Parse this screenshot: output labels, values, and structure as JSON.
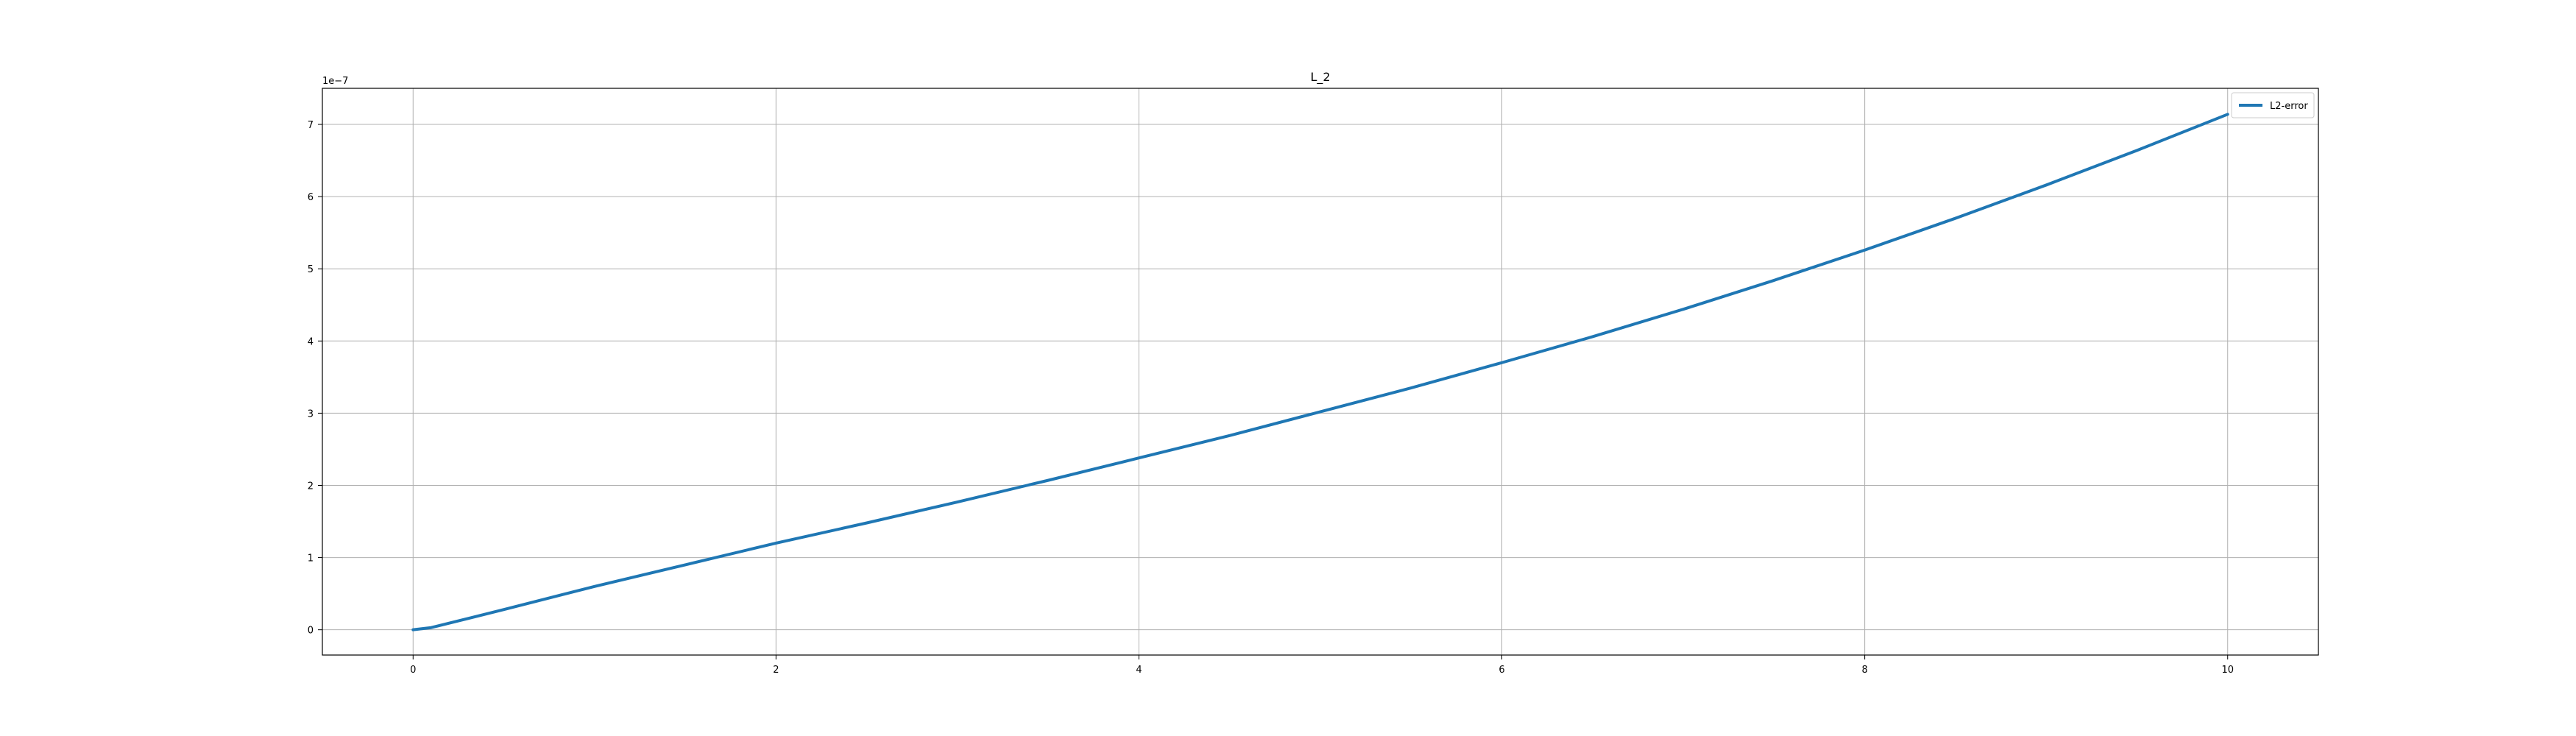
{
  "chart_data": {
    "type": "line",
    "title": "L_2",
    "xlabel": "",
    "ylabel": "",
    "y_offset_label": "1e−7",
    "xlim": [
      -0.5,
      10.5
    ],
    "ylim": [
      -0.35,
      7.5
    ],
    "x_ticks": [
      0,
      2,
      4,
      6,
      8,
      10
    ],
    "y_ticks": [
      0,
      1,
      2,
      3,
      4,
      5,
      6,
      7
    ],
    "x_tick_labels": [
      "0",
      "2",
      "4",
      "6",
      "8",
      "10"
    ],
    "y_tick_labels": [
      "0",
      "1",
      "2",
      "3",
      "4",
      "5",
      "6",
      "7"
    ],
    "grid": true,
    "legend": {
      "position": "top-right",
      "entries": [
        "L2-error"
      ]
    },
    "series": [
      {
        "name": "L2-error",
        "color": "#1f77b4",
        "x": [
          0,
          0.1,
          0.5,
          1,
          1.5,
          2,
          2.5,
          3,
          3.5,
          4,
          4.5,
          5,
          5.5,
          6,
          6.5,
          7,
          7.5,
          8,
          8.5,
          9,
          9.5,
          10
        ],
        "y": [
          0,
          0.03,
          0.28,
          0.6,
          0.9,
          1.2,
          1.48,
          1.77,
          2.07,
          2.38,
          2.69,
          3.02,
          3.35,
          3.7,
          4.06,
          4.44,
          4.84,
          5.26,
          5.7,
          6.16,
          6.64,
          7.14
        ]
      }
    ]
  }
}
